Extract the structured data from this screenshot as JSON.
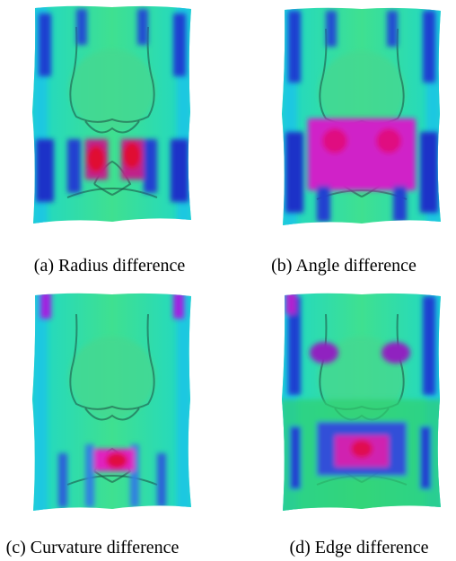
{
  "figure": {
    "panels": [
      {
        "caption": "(a) Radius difference"
      },
      {
        "caption": "(b) Angle difference"
      },
      {
        "caption": "(c) Curvature difference"
      },
      {
        "caption": "(d) Edge difference"
      }
    ]
  }
}
